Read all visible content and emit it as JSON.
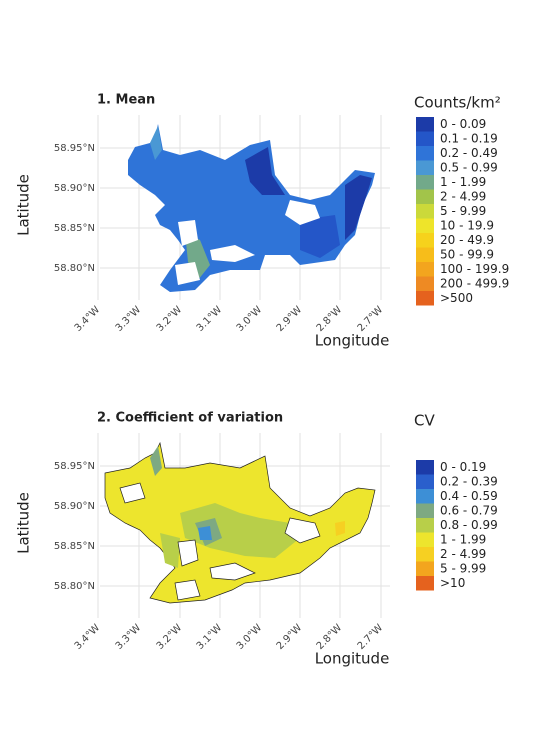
{
  "panels": [
    {
      "title": "1. Mean",
      "y_label": "Latitude",
      "x_label": "Longitude",
      "lat_ticks": [
        "58.95°N",
        "58.90°N",
        "58.85°N",
        "58.80°N"
      ],
      "lon_ticks": [
        "3.4°W",
        "3.3°W",
        "3.2°W",
        "3.1°W",
        "3.0°W",
        "2.9°W",
        "2.8°W",
        "2.7°W"
      ],
      "legend": {
        "title": "Counts/km²",
        "items": [
          {
            "label": "0 - 0.09",
            "color": "#1c3ba8"
          },
          {
            "label": "0.1 - 0.19",
            "color": "#2456c8"
          },
          {
            "label": "0.2 - 0.49",
            "color": "#2f74d8"
          },
          {
            "label": "0.5 - 0.99",
            "color": "#4a98d4"
          },
          {
            "label": "1 - 1.99",
            "color": "#72a98a"
          },
          {
            "label": "2 - 4.99",
            "color": "#a2c44a"
          },
          {
            "label": "5 - 9.99",
            "color": "#cbd93a"
          },
          {
            "label": "10 - 19.9",
            "color": "#eee42a"
          },
          {
            "label": "20 - 49.9",
            "color": "#f6d21c"
          },
          {
            "label": "50 - 99.9",
            "color": "#f7bd1a"
          },
          {
            "label": "100 - 199.9",
            "color": "#f3a51e"
          },
          {
            "label": "200 - 499.9",
            "color": "#ee8a23"
          },
          {
            "label": ">500",
            "color": "#e5621e"
          }
        ]
      }
    },
    {
      "title": "2. Coefficient of variation",
      "y_label": "Latitude",
      "x_label": "Longitude",
      "lat_ticks": [
        "58.95°N",
        "58.90°N",
        "58.85°N",
        "58.80°N"
      ],
      "lon_ticks": [
        "3.4°W",
        "3.3°W",
        "3.2°W",
        "3.1°W",
        "3.0°W",
        "2.9°W",
        "2.8°W",
        "2.7°W"
      ],
      "legend": {
        "title": "CV",
        "items": [
          {
            "label": "0 - 0.19",
            "color": "#1c3ba8"
          },
          {
            "label": "0.2 - 0.39",
            "color": "#2a5fcc"
          },
          {
            "label": "0.4 - 0.59",
            "color": "#3d8fd6"
          },
          {
            "label": "0.6 - 0.79",
            "color": "#7ea982"
          },
          {
            "label": "0.8 - 0.99",
            "color": "#b8cf49"
          },
          {
            "label": "1 - 1.99",
            "color": "#ede52d"
          },
          {
            "label": "2 - 4.99",
            "color": "#f6d022"
          },
          {
            "label": "5 - 9.99",
            "color": "#f3a51e"
          },
          {
            "label": ">10",
            "color": "#e5621e"
          }
        ]
      }
    }
  ]
}
